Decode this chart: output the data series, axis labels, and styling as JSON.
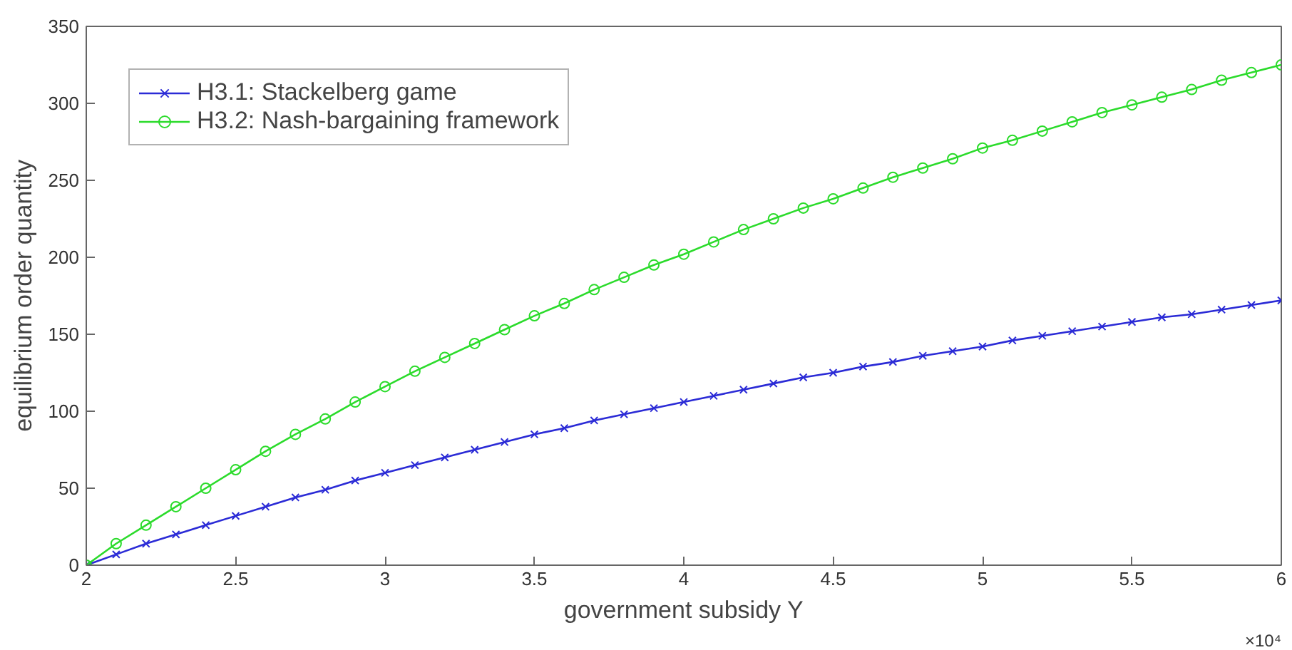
{
  "chart_data": {
    "type": "line",
    "xlabel": "government subsidy Y",
    "ylabel": "equilibrium order quantity",
    "x": [
      2,
      2.1,
      2.2,
      2.3,
      2.4,
      2.5,
      2.6,
      2.7,
      2.8,
      2.9,
      3,
      3.1,
      3.2,
      3.3,
      3.4,
      3.5,
      3.6,
      3.7,
      3.8,
      3.9,
      4,
      4.1,
      4.2,
      4.3,
      4.4,
      4.5,
      4.6,
      4.7,
      4.8,
      4.9,
      5,
      5.1,
      5.2,
      5.3,
      5.4,
      5.5,
      5.6,
      5.7,
      5.8,
      5.9,
      6
    ],
    "series": [
      {
        "name": "H3.1: Stackelberg game",
        "color": "#2b2bd6",
        "marker": "cross",
        "values": [
          0,
          7,
          14,
          20,
          26,
          32,
          38,
          44,
          49,
          55,
          60,
          65,
          70,
          75,
          80,
          85,
          89,
          94,
          98,
          102,
          106,
          110,
          114,
          118,
          122,
          125,
          129,
          132,
          136,
          139,
          142,
          146,
          149,
          152,
          155,
          158,
          161,
          163,
          166,
          169,
          172
        ]
      },
      {
        "name": "H3.2: Nash-bargaining framework",
        "color": "#2bdb2b",
        "marker": "circle",
        "values": [
          0,
          14,
          26,
          38,
          50,
          62,
          74,
          85,
          95,
          106,
          116,
          126,
          135,
          144,
          153,
          162,
          170,
          179,
          187,
          195,
          202,
          210,
          218,
          225,
          232,
          238,
          245,
          252,
          258,
          264,
          271,
          276,
          282,
          288,
          294,
          299,
          304,
          309,
          315,
          320,
          325
        ]
      }
    ],
    "xlim": [
      2,
      6
    ],
    "ylim": [
      0,
      350
    ],
    "xticks": [
      2,
      2.5,
      3,
      3.5,
      4,
      4.5,
      5,
      5.5,
      6
    ],
    "yticks": [
      0,
      50,
      100,
      150,
      200,
      250,
      300,
      350
    ],
    "annotations": [
      "×10⁴"
    ],
    "legend": "top left",
    "grid": false,
    "line_style": "solid"
  }
}
